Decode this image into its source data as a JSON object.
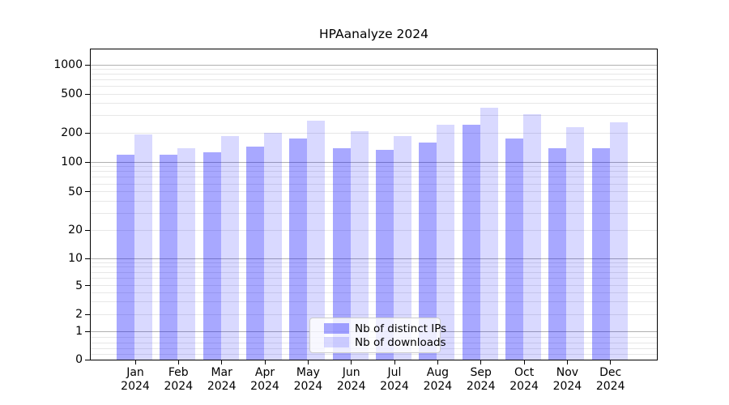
{
  "chart_data": {
    "type": "bar",
    "title": "HPAanalyze 2024",
    "categories": [
      "Jan 2024",
      "Feb 2024",
      "Mar 2024",
      "Apr 2024",
      "May 2024",
      "Jun 2024",
      "Jul 2024",
      "Aug 2024",
      "Sep 2024",
      "Oct 2024",
      "Nov 2024",
      "Dec 2024"
    ],
    "series": [
      {
        "name": "Nb of distinct IPs",
        "color": "rgba(0,0,255,0.34)",
        "values": [
          120,
          119,
          127,
          146,
          174,
          140,
          135,
          160,
          241,
          174,
          138,
          138
        ]
      },
      {
        "name": "Nb of downloads",
        "color": "rgba(0,0,255,0.15)",
        "values": [
          191,
          140,
          184,
          202,
          266,
          207,
          184,
          241,
          362,
          310,
          228,
          256
        ]
      }
    ],
    "yscale": "symlog",
    "ylim": [
      0,
      1450
    ],
    "yticks": [
      0,
      1,
      2,
      5,
      10,
      20,
      50,
      100,
      200,
      500,
      1000
    ],
    "grid": true,
    "legend": {
      "position": "lower center",
      "items": [
        "Nb of distinct IPs",
        "Nb of downloads"
      ]
    },
    "colors": {
      "bar_distinct_ips": "rgba(0,0,255,0.34)",
      "bar_downloads": "rgba(0,0,255,0.15)",
      "major_grid": "#b0b0b0",
      "minor_grid": "#e7e7e7",
      "spine": "#000000",
      "text": "#000000"
    }
  }
}
